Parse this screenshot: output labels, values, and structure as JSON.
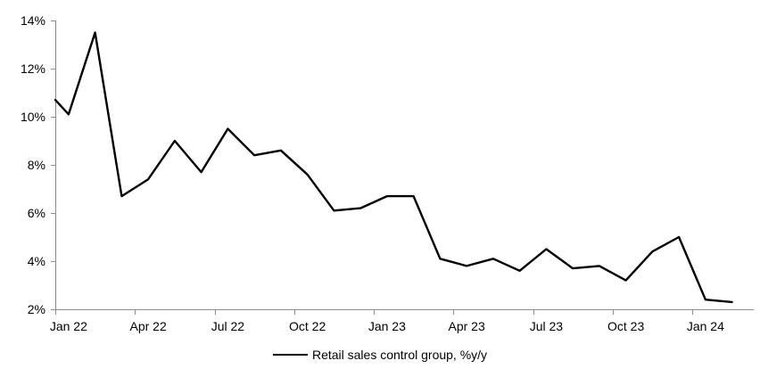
{
  "chart_data": {
    "type": "line",
    "title": "",
    "xlabel": "",
    "ylabel": "",
    "categories": [
      "Jan 22",
      "Feb 22",
      "Mar 22",
      "Apr 22",
      "May 22",
      "Jun 22",
      "Jul 22",
      "Aug 22",
      "Sep 22",
      "Oct 22",
      "Nov 22",
      "Dec 22",
      "Jan 23",
      "Feb 23",
      "Mar 23",
      "Apr 23",
      "May 23",
      "Jun 23",
      "Jul 23",
      "Aug 23",
      "Sep 23",
      "Oct 23",
      "Nov 23",
      "Dec 23",
      "Jan 24",
      "Feb 24"
    ],
    "series": [
      {
        "name": "Retail sales control group, %y/y",
        "color": "#000000",
        "values": [
          10.1,
          13.5,
          6.7,
          7.4,
          9.0,
          7.7,
          9.5,
          8.4,
          8.6,
          7.6,
          6.1,
          6.2,
          6.7,
          6.7,
          4.1,
          3.8,
          4.1,
          3.6,
          4.5,
          3.7,
          3.8,
          3.2,
          4.4,
          5.0,
          2.4,
          2.3
        ]
      }
    ],
    "edge_clip_start_value": 10.7,
    "x_tick_labels": [
      "Jan 22",
      "Apr 22",
      "Jul 22",
      "Oct 22",
      "Jan 23",
      "Apr 23",
      "Jul 23",
      "Oct 23",
      "Jan 24"
    ],
    "x_tick_interval_months": 3,
    "y_tick_labels": [
      "2%",
      "4%",
      "6%",
      "8%",
      "10%",
      "12%",
      "14%"
    ],
    "y_min": 2,
    "y_max": 14,
    "y_step": 2,
    "grid": false,
    "legend_position": "bottom-center",
    "axis_color": "#8c8c8c",
    "line_color": "#000000"
  },
  "legend": {
    "label": "Retail sales control group, %y/y"
  }
}
